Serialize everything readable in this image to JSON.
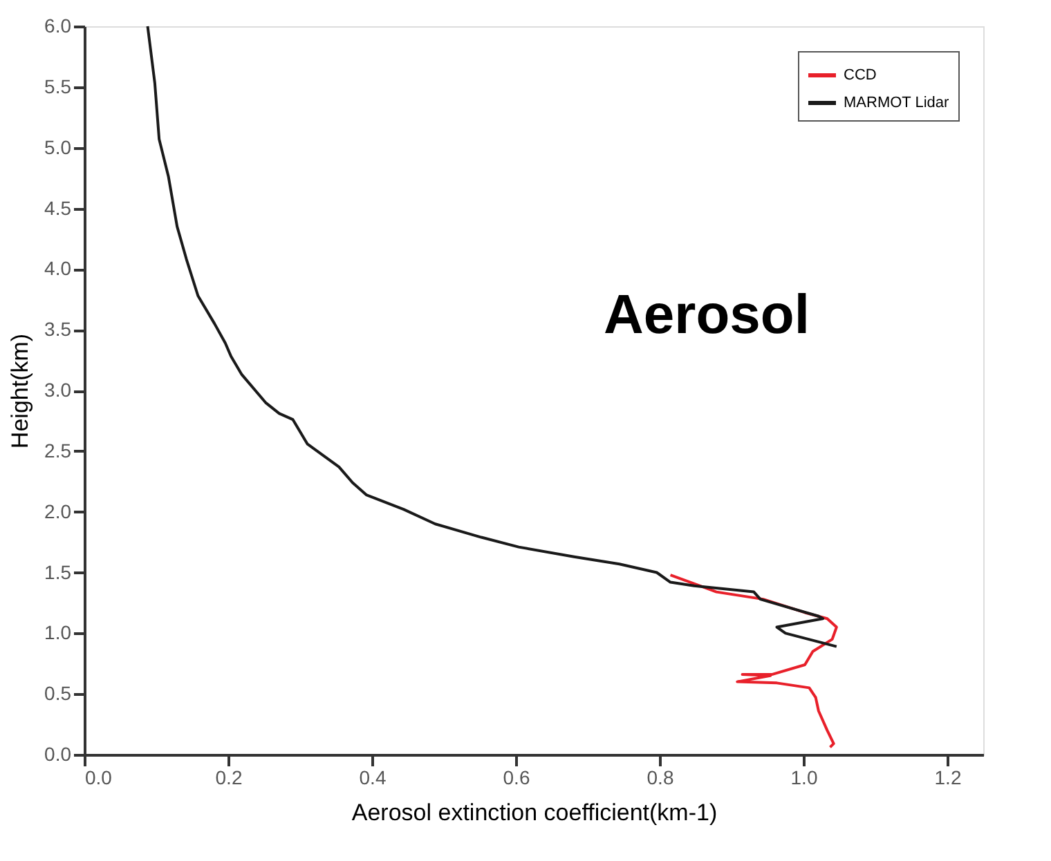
{
  "chart_data": {
    "type": "line",
    "xlabel": "Aerosol extinction coefficient(km-1)",
    "ylabel": "Height(km)",
    "xlim": [
      0,
      1.25
    ],
    "xticks": [
      {
        "value": 0,
        "label": "0.0"
      },
      0.2,
      0.4,
      0.6,
      0.8,
      {
        "value": 1,
        "label": "1.0"
      },
      1.2
    ],
    "ylim": [
      0,
      6
    ],
    "yticks": [
      {
        "value": 0,
        "label": "0.0"
      },
      0.5,
      {
        "value": 1,
        "label": "1.0"
      },
      1.5,
      {
        "value": 2,
        "label": "2.0"
      },
      2.5,
      {
        "value": 3,
        "label": "3.0"
      },
      3.5,
      {
        "value": 4,
        "label": "4.0"
      },
      4.5,
      {
        "value": 5,
        "label": "5.0"
      },
      5.5,
      {
        "value": 6,
        "label": "6.0"
      }
    ],
    "grid": false,
    "legend": "top right",
    "line_style": "solid",
    "marker": "none",
    "annotations": [
      "Aerosol"
    ],
    "series": [
      {
        "name": "CCD",
        "color": "#e8202a",
        "x": [
          0.815,
          0.879,
          0.944,
          1.002,
          1.033,
          1.046,
          1.04,
          1.013,
          1.002,
          0.956,
          0.915,
          0.954,
          0.908,
          0.963,
          1.008,
          1.017,
          1.021,
          1.033,
          1.042,
          1.037
        ],
        "values": [
          1.48,
          1.34,
          1.28,
          1.17,
          1.12,
          1.05,
          0.95,
          0.85,
          0.74,
          0.66,
          0.66,
          0.65,
          0.6,
          0.59,
          0.55,
          0.47,
          0.36,
          0.2,
          0.09,
          0.06
        ]
      },
      {
        "name": "MARMOT Lidar",
        "color": "#1a1a1a",
        "x": [
          0.088,
          0.098,
          0.104,
          0.117,
          0.129,
          0.142,
          0.158,
          0.181,
          0.196,
          0.204,
          0.219,
          0.252,
          0.271,
          0.29,
          0.31,
          0.354,
          0.373,
          0.392,
          0.444,
          0.488,
          0.552,
          0.604,
          0.681,
          0.744,
          0.796,
          0.815,
          0.848,
          0.931,
          0.94,
          1.021,
          1.027,
          0.963,
          0.975,
          1.046
        ],
        "values": [
          6.0,
          5.53,
          5.07,
          4.76,
          4.35,
          4.08,
          3.78,
          3.55,
          3.39,
          3.28,
          3.13,
          2.9,
          2.81,
          2.76,
          2.56,
          2.37,
          2.24,
          2.14,
          2.02,
          1.9,
          1.79,
          1.71,
          1.63,
          1.57,
          1.5,
          1.42,
          1.39,
          1.34,
          1.28,
          1.14,
          1.12,
          1.05,
          1.0,
          0.89
        ]
      }
    ]
  }
}
